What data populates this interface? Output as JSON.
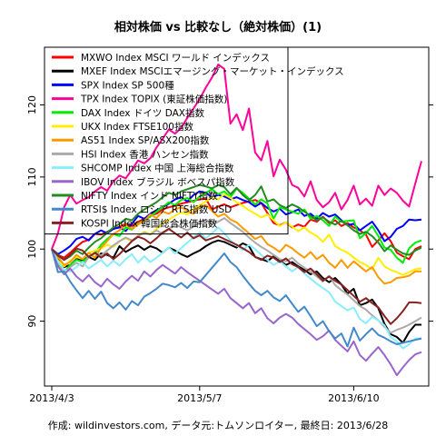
{
  "chart_data": {
    "type": "line",
    "title": "相対株価 vs 比較なし（絶対株価）(1)",
    "caption": "作成: wildinvestors.com, データ元:トムソンロイター, 最終日: 2013/6/28",
    "xlim": [
      0,
      60
    ],
    "ylim": [
      81,
      128
    ],
    "yticks": [
      90,
      100,
      110,
      120
    ],
    "ytick_labels": [
      "90",
      "100",
      "110",
      "120"
    ],
    "xticks": [
      {
        "x": 0,
        "label": "2013/4/3"
      },
      {
        "x": 24,
        "label": "2013/5/7"
      },
      {
        "x": 49,
        "label": "2013/6/10"
      }
    ],
    "legend_position": "top-left",
    "grid": false,
    "series": [
      {
        "name": "MXWO Index MSCI ワールド インデックス",
        "color": "#FF0000",
        "values": [
          100,
          99.2,
          98.8,
          99.5,
          100.3,
          101,
          101.3,
          102.1,
          102,
          102.4,
          102.8,
          103.1,
          103.5,
          103.2,
          103.8,
          104.2,
          104.7,
          104.9,
          105.5,
          105.8,
          106,
          106.3,
          106.5,
          106.7,
          106.9,
          107,
          105.5,
          105.9,
          106.2,
          105.8,
          106.1,
          106.4,
          106.6,
          106.8,
          106.4,
          105,
          103.6,
          103.3,
          103.7,
          103,
          103.4,
          103.1,
          104.1,
          103.8,
          104.5,
          103.6,
          104,
          103.2,
          103.6,
          103,
          102.6,
          102,
          100.3,
          101.2,
          102.2,
          101.1,
          99.5,
          99,
          98.6,
          100,
          100.4
        ]
      },
      {
        "name": "MXEF Index MSCIエマージング・マーケット・インデックス",
        "color": "#000000",
        "values": [
          100,
          98.6,
          97.5,
          97.8,
          98.6,
          98.5,
          98.9,
          98.5,
          99.4,
          99.2,
          98.8,
          100.4,
          99.6,
          100.1,
          100.5,
          99.9,
          100.4,
          100.1,
          99.5,
          100.2,
          99.8,
          99.3,
          98.9,
          99.4,
          99.8,
          100.4,
          100.9,
          101.2,
          101,
          100.6,
          100.2,
          100.8,
          100.4,
          98.9,
          98.6,
          98.3,
          99,
          98.4,
          97.8,
          98.2,
          97.6,
          97.1,
          96.5,
          96.9,
          96,
          95.4,
          96,
          95.1,
          93.8,
          94.5,
          92.2,
          92.5,
          93,
          91.8,
          89.6,
          88.2,
          87.8,
          87,
          88.5,
          89.5,
          89.5
        ]
      },
      {
        "name": "SPX Index SP 500種",
        "color": "#0000FF",
        "values": [
          100,
          99.3,
          99.8,
          100.4,
          101.4,
          101.7,
          101.2,
          102.1,
          102.6,
          102.2,
          102.8,
          103,
          102.5,
          103.5,
          104.6,
          104.2,
          104.9,
          105.4,
          105.8,
          106.3,
          106.9,
          107.2,
          106.6,
          107.5,
          108,
          107.8,
          107.2,
          107.5,
          107.3,
          106.9,
          107.2,
          106.8,
          106.5,
          105.9,
          106.4,
          105.7,
          105.2,
          105.6,
          104.8,
          105.1,
          105.5,
          104.6,
          104.9,
          104.2,
          105,
          104.5,
          104.8,
          104,
          103.3,
          103.5,
          102.6,
          103.2,
          103.8,
          102.6,
          101.1,
          101.7,
          102.8,
          103.2,
          104.1,
          104,
          104.1
        ]
      },
      {
        "name": "TPX Index TOPIX (東証株価指数)",
        "color": "#FF0099",
        "values": [
          100,
          102.2,
          105.8,
          107.5,
          106.3,
          106.8,
          107.2,
          108,
          108.6,
          108.1,
          109.4,
          110.2,
          109.8,
          111,
          112.3,
          111.9,
          112.6,
          114.1,
          115.3,
          116.6,
          116,
          116.8,
          118.2,
          119.5,
          120.8,
          122.4,
          123.8,
          125.6,
          125,
          117.4,
          118.7,
          116.5,
          119.5,
          113.4,
          112.3,
          115,
          110.1,
          112.4,
          111,
          108.9,
          108.5,
          107.3,
          109.4,
          106.8,
          105.8,
          106.5,
          107.8,
          105.5,
          106.8,
          108.8,
          106.2,
          107,
          106,
          108.8,
          107.5,
          108.4,
          107.8,
          106.7,
          105.9,
          109.1,
          112.2
        ]
      },
      {
        "name": "DAX Index ドイツ DAX指数",
        "color": "#00EE00",
        "values": [
          100,
          98,
          96.8,
          97.8,
          98.5,
          98.2,
          99,
          99.4,
          100.6,
          101.4,
          102.1,
          101.8,
          103,
          102.7,
          103.5,
          104,
          104.5,
          105.2,
          105.8,
          106.5,
          106.1,
          106.8,
          107.1,
          106.5,
          107.3,
          107.8,
          108.3,
          107.6,
          108,
          107.2,
          108.4,
          107.8,
          107,
          106.2,
          106.9,
          106.3,
          104.2,
          105.8,
          105.5,
          105.2,
          104.9,
          105.5,
          104.2,
          104.6,
          104,
          103.2,
          104.5,
          103.8,
          103.9,
          104,
          101.5,
          102.2,
          103.2,
          101.8,
          100.2,
          99.9,
          98.8,
          98.1,
          100.1,
          100.9,
          101.2
        ]
      },
      {
        "name": "UKX Index FTSE100指数",
        "color": "#FFEE00",
        "values": [
          100,
          98.4,
          97.6,
          98.4,
          98.9,
          98.6,
          99.5,
          99.8,
          100.1,
          100.6,
          100.3,
          101.1,
          101.5,
          101.1,
          101.9,
          102.4,
          102.1,
          102.8,
          103.6,
          104.1,
          104.6,
          105.1,
          104.8,
          105.5,
          106.1,
          106.6,
          107.2,
          106.9,
          107.6,
          107.1,
          106.5,
          106,
          105.4,
          104.9,
          104.4,
          104.8,
          104,
          103.2,
          103.7,
          103.1,
          102.5,
          103,
          102.3,
          101.8,
          101,
          102,
          100.4,
          99.9,
          99.5,
          98.8,
          98.2,
          97.8,
          97.2,
          98.8,
          97.6,
          97.1,
          96.8,
          96.4,
          96.8,
          97.2,
          97.3
        ]
      },
      {
        "name": "AS51 Index SP/ASX200指数",
        "color": "#FF9900",
        "values": [
          100,
          98.9,
          97.8,
          98.2,
          99.2,
          98.6,
          99.5,
          98.8,
          100.2,
          101.1,
          102.1,
          102.6,
          103.4,
          102.8,
          103.4,
          103.9,
          104.8,
          104.3,
          105.2,
          104.9,
          105.5,
          105.8,
          105.3,
          104.9,
          105.8,
          106.1,
          105.3,
          104.5,
          104.9,
          104.1,
          103.7,
          102.9,
          102.2,
          101.4,
          101.8,
          100.7,
          100.2,
          99.6,
          100.6,
          100.1,
          99.4,
          98.8,
          99.6,
          98.6,
          99.2,
          98.1,
          97.4,
          98.5,
          97.4,
          98.3,
          97.6,
          96.9,
          97.5,
          96.1,
          95.2,
          95.4,
          96,
          96.1,
          96.3,
          96.9,
          96.9
        ]
      },
      {
        "name": "HSI Index 香港 ハンセン指数",
        "color": "#AAAAAA",
        "values": [
          100,
          98.2,
          96.8,
          97.5,
          98.1,
          97.6,
          98.9,
          99.5,
          99.1,
          99.8,
          100.5,
          101.1,
          101.6,
          101.2,
          101.8,
          102.3,
          102,
          102.6,
          102.1,
          102.8,
          103.4,
          103,
          102.6,
          103.1,
          103.7,
          104.1,
          103.4,
          103.8,
          104.3,
          103.6,
          103,
          102.4,
          101.6,
          100.9,
          100.3,
          99.8,
          99.2,
          98.6,
          98.3,
          98.8,
          98,
          97.4,
          96.9,
          96.2,
          95.5,
          96.3,
          95,
          94.3,
          93.7,
          92.9,
          92.1,
          91.6,
          90.8,
          90.1,
          89.2,
          88.4,
          88.8,
          89.1,
          89.5,
          90,
          90.5
        ]
      },
      {
        "name": "SHCOMP Index 中国 上海総合指数",
        "color": "#88EEFF",
        "values": [
          100,
          98.3,
          97.1,
          96.9,
          97.5,
          98.2,
          97.3,
          97.9,
          98.5,
          97.6,
          98.4,
          97.7,
          98.6,
          99.3,
          98.1,
          99,
          98.2,
          98.8,
          99.5,
          100.2,
          99.4,
          100.1,
          100.9,
          101.6,
          102.3,
          101.5,
          102.2,
          103,
          102.2,
          101.2,
          100.5,
          99.9,
          100.6,
          100,
          99.2,
          98.5,
          97.8,
          98.3,
          97.6,
          96.9,
          97.5,
          96.6,
          95.9,
          95.2,
          94.6,
          94,
          92.7,
          92.1,
          91.5,
          91.9,
          90.3,
          89.7,
          90.6,
          90.1,
          89.4,
          87.8,
          87.2,
          86.2,
          86.8,
          87.6,
          87.6
        ]
      },
      {
        "name": "IBOV Index ブラジル ボベスパ指数",
        "color": "#9966CC",
        "values": [
          100,
          97.6,
          96.5,
          97.3,
          96.2,
          95.5,
          96.4,
          95.4,
          94.8,
          95.9,
          95.1,
          94.5,
          95.5,
          96.3,
          95.6,
          96.9,
          96.2,
          97.1,
          97.8,
          97.2,
          96.6,
          97.5,
          96.8,
          96.2,
          95.6,
          95,
          94.4,
          93.8,
          94.5,
          93.2,
          92.5,
          91.8,
          92.5,
          91.1,
          91.8,
          90.4,
          89.7,
          90.5,
          91,
          90.5,
          89.6,
          88.9,
          88.2,
          87.4,
          87.9,
          88.7,
          87.4,
          86.6,
          85.8,
          87.2,
          85.3,
          84.5,
          85.5,
          86.4,
          85.3,
          84,
          82.5,
          83.6,
          84.6,
          85.4,
          85.7
        ]
      },
      {
        "name": "NIFTY Index インド NIFTY指数",
        "color": "#228B22",
        "values": [
          100,
          99.2,
          98.5,
          99,
          99.8,
          99.3,
          100.2,
          101,
          101.5,
          102.3,
          103,
          103.5,
          104.2,
          104,
          104.9,
          105.5,
          106,
          106.5,
          107.2,
          107.8,
          107.5,
          108,
          108.3,
          108.6,
          108.9,
          108.7,
          108.4,
          108.9,
          108.6,
          107.6,
          108.5,
          107.5,
          106.8,
          107.5,
          108.7,
          106.6,
          106.9,
          106.1,
          105.7,
          106.2,
          105.8,
          105.2,
          104.6,
          104,
          104.4,
          103.8,
          103.4,
          103.9,
          103.3,
          102.6,
          102.1,
          102.4,
          101.8,
          100.9,
          99.7,
          100.5,
          99.9,
          99.4,
          99.2,
          99.8,
          100.2
        ]
      },
      {
        "name": "RTSI$ Index ロシア RTS指数 USD",
        "color": "#4488CC",
        "values": [
          100,
          96.8,
          96.9,
          95.5,
          94.3,
          93.2,
          94.2,
          93.1,
          94.1,
          92.5,
          91.8,
          92.6,
          91.6,
          92.8,
          92.2,
          93.4,
          93.9,
          94.5,
          95.2,
          95,
          94.7,
          95.3,
          94.6,
          95.5,
          95.4,
          96.4,
          97.4,
          98.4,
          99.4,
          98.2,
          97.5,
          96.3,
          95.2,
          94.2,
          93.6,
          94.2,
          93.3,
          92.8,
          93.6,
          92.4,
          91.3,
          92,
          90.7,
          89.3,
          90,
          88.6,
          87.6,
          88.3,
          86.5,
          89.1,
          87.3,
          88.2,
          89,
          88.1,
          87.7,
          87.2,
          86.8,
          87,
          87.2,
          87.4,
          87.6
        ]
      },
      {
        "name": "KOSPI Index 韓国総合株価指数",
        "color": "#882222",
        "values": [
          100,
          99.1,
          98.5,
          99.2,
          100.1,
          99.8,
          98.9,
          99.5,
          98.8,
          99.4,
          98.6,
          99.3,
          100.2,
          101.1,
          101.7,
          101.4,
          100.8,
          101.5,
          102.3,
          102.8,
          102.2,
          101.6,
          102.3,
          101.5,
          101.9,
          101.2,
          101.5,
          101.8,
          101.4,
          101,
          100.6,
          100.1,
          99.6,
          98.9,
          98.5,
          99.1,
          98.8,
          98.2,
          98.7,
          97.9,
          97.5,
          96.8,
          97.3,
          96.5,
          95.6,
          96.2,
          95.6,
          95.1,
          94.3,
          93.5,
          92.7,
          93.2,
          92.5,
          91.9,
          90.7,
          89.6,
          90.4,
          91.4,
          92.6,
          92.6,
          92.5
        ]
      }
    ]
  }
}
